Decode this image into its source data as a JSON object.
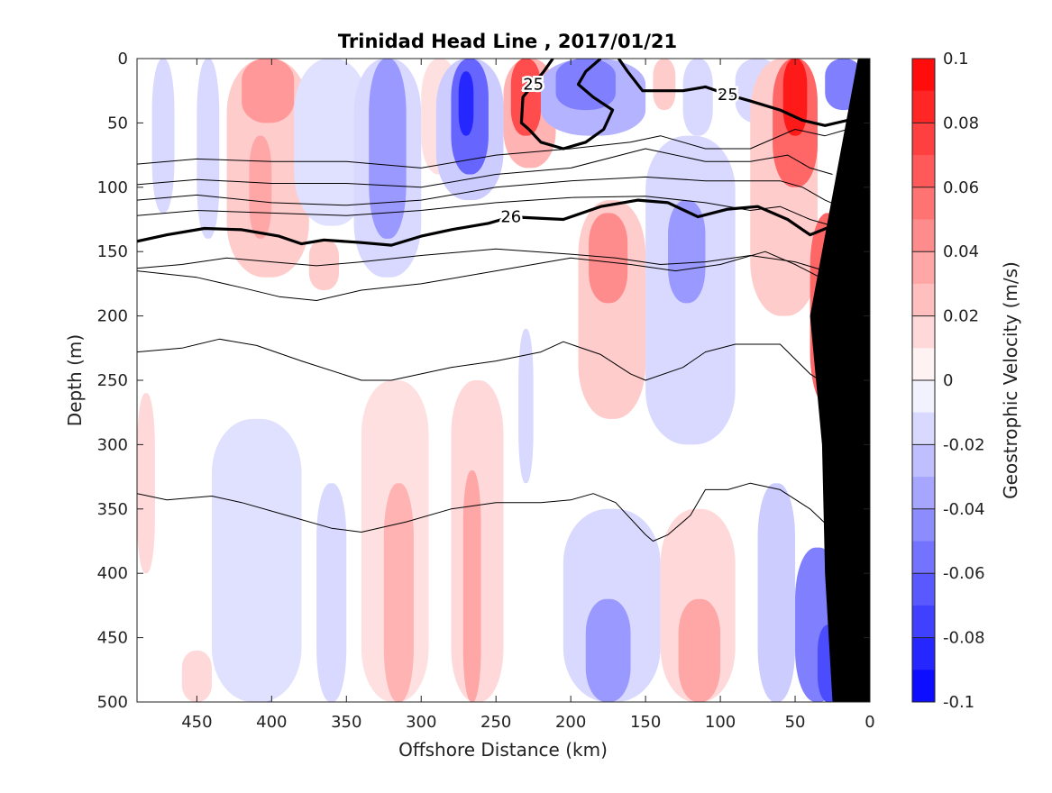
{
  "chart_data": {
    "type": "contour",
    "title": "Trinidad Head Line , 2017/01/21",
    "xlabel": "Offshore Distance (km)",
    "ylabel": "Depth (m)",
    "xlim": [
      490,
      0
    ],
    "ylim": [
      500,
      0
    ],
    "x_direction": "reversed (offshore left, coast right)",
    "y_direction": "reversed (depth increases downward)",
    "x_ticks": [
      450,
      400,
      350,
      300,
      250,
      200,
      150,
      100,
      50,
      0
    ],
    "y_ticks": [
      0,
      50,
      100,
      150,
      200,
      250,
      300,
      350,
      400,
      450,
      500
    ],
    "colorbar": {
      "label": "Geostrophic Velocity (m/s)",
      "ticks": [
        0.1,
        0.08,
        0.06,
        0.04,
        0.02,
        0,
        -0.02,
        -0.04,
        -0.06,
        -0.08,
        -0.1
      ],
      "range": [
        -0.1,
        0.1
      ],
      "levels": 20,
      "colormap": "blue-white-red"
    },
    "velocity_cells": [
      {
        "x": [
          480,
          465
        ],
        "y": [
          0,
          120
        ],
        "v": -0.015
      },
      {
        "x": [
          490,
          478
        ],
        "y": [
          260,
          400
        ],
        "v": 0.015
      },
      {
        "x": [
          450,
          435
        ],
        "y": [
          0,
          140
        ],
        "v": -0.015
      },
      {
        "x": [
          460,
          440
        ],
        "y": [
          460,
          500
        ],
        "v": 0.015
      },
      {
        "x": [
          430,
          375
        ],
        "y": [
          0,
          170
        ],
        "v": 0.02
      },
      {
        "x": [
          420,
          385
        ],
        "y": [
          0,
          50
        ],
        "v": 0.04
      },
      {
        "x": [
          415,
          400
        ],
        "y": [
          60,
          140
        ],
        "v": 0.035
      },
      {
        "x": [
          420,
          390
        ],
        "y": [
          380,
          500
        ],
        "v": -0.015
      },
      {
        "x": [
          410,
          395
        ],
        "y": [
          410,
          500
        ],
        "v": -0.03
      },
      {
        "x": [
          440,
          380
        ],
        "y": [
          280,
          500
        ],
        "v": -0.012
      },
      {
        "x": [
          385,
          335
        ],
        "y": [
          0,
          130
        ],
        "v": -0.012
      },
      {
        "x": [
          375,
          355
        ],
        "y": [
          140,
          180
        ],
        "v": 0.02
      },
      {
        "x": [
          370,
          350
        ],
        "y": [
          330,
          500
        ],
        "v": -0.015
      },
      {
        "x": [
          345,
          300
        ],
        "y": [
          0,
          170
        ],
        "v": -0.015
      },
      {
        "x": [
          335,
          310
        ],
        "y": [
          0,
          140
        ],
        "v": -0.04
      },
      {
        "x": [
          340,
          295
        ],
        "y": [
          250,
          500
        ],
        "v": 0.012
      },
      {
        "x": [
          325,
          305
        ],
        "y": [
          330,
          500
        ],
        "v": 0.03
      },
      {
        "x": [
          300,
          275
        ],
        "y": [
          0,
          90
        ],
        "v": 0.012
      },
      {
        "x": [
          290,
          245
        ],
        "y": [
          0,
          110
        ],
        "v": -0.02
      },
      {
        "x": [
          280,
          255
        ],
        "y": [
          0,
          90
        ],
        "v": -0.06
      },
      {
        "x": [
          275,
          265
        ],
        "y": [
          10,
          60
        ],
        "v": -0.085
      },
      {
        "x": [
          280,
          245
        ],
        "y": [
          250,
          500
        ],
        "v": 0.015
      },
      {
        "x": [
          272,
          260
        ],
        "y": [
          320,
          500
        ],
        "v": 0.035
      },
      {
        "x": [
          245,
          210
        ],
        "y": [
          0,
          85
        ],
        "v": 0.03
      },
      {
        "x": [
          240,
          220
        ],
        "y": [
          0,
          60
        ],
        "v": 0.07
      },
      {
        "x": [
          235,
          225
        ],
        "y": [
          210,
          330
        ],
        "v": -0.015
      },
      {
        "x": [
          220,
          150
        ],
        "y": [
          0,
          60
        ],
        "v": -0.03
      },
      {
        "x": [
          210,
          170
        ],
        "y": [
          0,
          40
        ],
        "v": -0.05
      },
      {
        "x": [
          195,
          150
        ],
        "y": [
          110,
          280
        ],
        "v": 0.02
      },
      {
        "x": [
          188,
          162
        ],
        "y": [
          120,
          190
        ],
        "v": 0.045
      },
      {
        "x": [
          205,
          140
        ],
        "y": [
          350,
          500
        ],
        "v": -0.015
      },
      {
        "x": [
          190,
          160
        ],
        "y": [
          420,
          500
        ],
        "v": -0.04
      },
      {
        "x": [
          150,
          90
        ],
        "y": [
          60,
          300
        ],
        "v": -0.015
      },
      {
        "x": [
          135,
          110
        ],
        "y": [
          110,
          190
        ],
        "v": -0.04
      },
      {
        "x": [
          140,
          90
        ],
        "y": [
          350,
          500
        ],
        "v": 0.015
      },
      {
        "x": [
          128,
          100
        ],
        "y": [
          420,
          500
        ],
        "v": 0.035
      },
      {
        "x": [
          145,
          130
        ],
        "y": [
          0,
          40
        ],
        "v": 0.02
      },
      {
        "x": [
          125,
          105
        ],
        "y": [
          0,
          60
        ],
        "v": -0.015
      },
      {
        "x": [
          90,
          60
        ],
        "y": [
          0,
          50
        ],
        "v": -0.015
      },
      {
        "x": [
          80,
          35
        ],
        "y": [
          0,
          200
        ],
        "v": 0.02
      },
      {
        "x": [
          65,
          35
        ],
        "y": [
          0,
          100
        ],
        "v": 0.06
      },
      {
        "x": [
          58,
          42
        ],
        "y": [
          0,
          60
        ],
        "v": 0.09
      },
      {
        "x": [
          40,
          15
        ],
        "y": [
          120,
          270
        ],
        "v": 0.06
      },
      {
        "x": [
          32,
          18
        ],
        "y": [
          130,
          220
        ],
        "v": 0.08
      },
      {
        "x": [
          75,
          50
        ],
        "y": [
          330,
          500
        ],
        "v": -0.02
      },
      {
        "x": [
          50,
          20
        ],
        "y": [
          380,
          500
        ],
        "v": -0.05
      },
      {
        "x": [
          35,
          20
        ],
        "y": [
          440,
          500
        ],
        "v": -0.07
      },
      {
        "x": [
          30,
          5
        ],
        "y": [
          0,
          40
        ],
        "v": -0.05
      }
    ],
    "density_contours": [
      {
        "label": "25",
        "bold": true,
        "points": [
          [
            228,
            55
          ],
          [
            233,
            50
          ],
          [
            232,
            30
          ],
          [
            225,
            20
          ],
          [
            218,
            10
          ],
          [
            212,
            0
          ]
        ]
      },
      {
        "label": "",
        "bold": true,
        "points": [
          [
            228,
            55
          ],
          [
            220,
            65
          ],
          [
            205,
            70
          ],
          [
            190,
            65
          ],
          [
            178,
            55
          ],
          [
            172,
            40
          ],
          [
            185,
            30
          ],
          [
            195,
            20
          ],
          [
            190,
            10
          ],
          [
            180,
            0
          ]
        ]
      },
      {
        "label": "25",
        "bold": true,
        "points": [
          [
            168,
            0
          ],
          [
            162,
            10
          ],
          [
            152,
            25
          ],
          [
            140,
            25
          ],
          [
            125,
            25
          ],
          [
            110,
            22
          ],
          [
            95,
            28
          ],
          [
            80,
            33
          ],
          [
            60,
            40
          ],
          [
            45,
            48
          ],
          [
            30,
            52
          ],
          [
            15,
            48
          ],
          [
            8,
            35
          ]
        ]
      },
      {
        "label": "",
        "bold": false,
        "points": [
          [
            490,
            82
          ],
          [
            450,
            78
          ],
          [
            400,
            80
          ],
          [
            350,
            80
          ],
          [
            300,
            85
          ],
          [
            250,
            75
          ],
          [
            200,
            70
          ],
          [
            160,
            65
          ],
          [
            140,
            60
          ],
          [
            110,
            70
          ],
          [
            80,
            70
          ],
          [
            50,
            55
          ],
          [
            30,
            60
          ],
          [
            15,
            55
          ]
        ]
      },
      {
        "label": "",
        "bold": false,
        "points": [
          [
            490,
            98
          ],
          [
            450,
            94
          ],
          [
            400,
            97
          ],
          [
            350,
            97
          ],
          [
            300,
            100
          ],
          [
            250,
            90
          ],
          [
            200,
            85
          ],
          [
            150,
            70
          ],
          [
            110,
            80
          ],
          [
            80,
            80
          ],
          [
            55,
            75
          ],
          [
            40,
            85
          ],
          [
            25,
            90
          ]
        ]
      },
      {
        "label": "",
        "bold": false,
        "points": [
          [
            490,
            110
          ],
          [
            450,
            106
          ],
          [
            400,
            112
          ],
          [
            350,
            114
          ],
          [
            300,
            110
          ],
          [
            250,
            100
          ],
          [
            200,
            95
          ],
          [
            150,
            92
          ],
          [
            110,
            95
          ],
          [
            80,
            95
          ],
          [
            60,
            95
          ],
          [
            45,
            100
          ],
          [
            30,
            110
          ],
          [
            20,
            115
          ]
        ]
      },
      {
        "label": "",
        "bold": false,
        "points": [
          [
            490,
            122
          ],
          [
            450,
            118
          ],
          [
            400,
            120
          ],
          [
            350,
            122
          ],
          [
            300,
            118
          ],
          [
            250,
            112
          ],
          [
            200,
            108
          ],
          [
            150,
            107
          ],
          [
            110,
            112
          ],
          [
            80,
            118
          ],
          [
            60,
            115
          ],
          [
            40,
            125
          ],
          [
            25,
            130
          ]
        ]
      },
      {
        "label": "26",
        "bold": true,
        "points": [
          [
            490,
            142
          ],
          [
            470,
            137
          ],
          [
            445,
            132
          ],
          [
            420,
            133
          ],
          [
            395,
            138
          ],
          [
            380,
            144
          ],
          [
            365,
            141
          ],
          [
            340,
            143
          ],
          [
            320,
            145
          ],
          [
            300,
            138
          ],
          [
            280,
            133
          ],
          [
            255,
            128
          ],
          [
            240,
            123
          ],
          [
            205,
            125
          ],
          [
            180,
            115
          ],
          [
            155,
            110
          ],
          [
            135,
            112
          ],
          [
            115,
            123
          ],
          [
            95,
            117
          ],
          [
            75,
            115
          ],
          [
            55,
            125
          ],
          [
            40,
            137
          ],
          [
            25,
            130
          ],
          [
            15,
            120
          ]
        ]
      },
      {
        "label": "",
        "bold": false,
        "points": [
          [
            490,
            163
          ],
          [
            460,
            160
          ],
          [
            430,
            155
          ],
          [
            400,
            158
          ],
          [
            370,
            161
          ],
          [
            340,
            158
          ],
          [
            300,
            153
          ],
          [
            250,
            148
          ],
          [
            200,
            152
          ],
          [
            170,
            155
          ],
          [
            140,
            160
          ],
          [
            110,
            158
          ],
          [
            80,
            153
          ],
          [
            50,
            158
          ],
          [
            30,
            165
          ]
        ]
      },
      {
        "label": "",
        "bold": false,
        "points": [
          [
            490,
            165
          ],
          [
            450,
            170
          ],
          [
            420,
            178
          ],
          [
            395,
            185
          ],
          [
            370,
            188
          ],
          [
            340,
            180
          ],
          [
            300,
            175
          ],
          [
            250,
            165
          ],
          [
            200,
            155
          ],
          [
            160,
            160
          ],
          [
            130,
            165
          ],
          [
            100,
            160
          ],
          [
            70,
            150
          ],
          [
            50,
            160
          ],
          [
            25,
            175
          ]
        ]
      },
      {
        "label": "",
        "bold": false,
        "points": [
          [
            490,
            228
          ],
          [
            460,
            225
          ],
          [
            435,
            218
          ],
          [
            410,
            223
          ],
          [
            380,
            235
          ],
          [
            340,
            250
          ],
          [
            320,
            250
          ],
          [
            280,
            240
          ],
          [
            250,
            235
          ],
          [
            220,
            228
          ],
          [
            205,
            220
          ],
          [
            180,
            230
          ],
          [
            160,
            245
          ],
          [
            150,
            250
          ],
          [
            125,
            240
          ],
          [
            110,
            228
          ],
          [
            90,
            222
          ],
          [
            60,
            222
          ],
          [
            40,
            245
          ],
          [
            20,
            260
          ]
        ]
      },
      {
        "label": "",
        "bold": false,
        "points": [
          [
            490,
            338
          ],
          [
            470,
            343
          ],
          [
            440,
            340
          ],
          [
            420,
            345
          ],
          [
            390,
            355
          ],
          [
            360,
            365
          ],
          [
            340,
            368
          ],
          [
            310,
            360
          ],
          [
            280,
            350
          ],
          [
            250,
            345
          ],
          [
            220,
            345
          ],
          [
            200,
            343
          ],
          [
            185,
            338
          ],
          [
            170,
            345
          ],
          [
            150,
            370
          ],
          [
            145,
            375
          ],
          [
            135,
            370
          ],
          [
            120,
            355
          ],
          [
            110,
            335
          ],
          [
            95,
            335
          ],
          [
            80,
            330
          ],
          [
            60,
            335
          ],
          [
            40,
            350
          ],
          [
            20,
            372
          ]
        ]
      }
    ],
    "bathymetry": {
      "fill": "#000000",
      "points": [
        [
          0,
          0
        ],
        [
          0,
          500
        ],
        [
          25,
          500
        ],
        [
          30,
          400
        ],
        [
          32,
          300
        ],
        [
          40,
          200
        ],
        [
          8,
          0
        ]
      ]
    }
  }
}
